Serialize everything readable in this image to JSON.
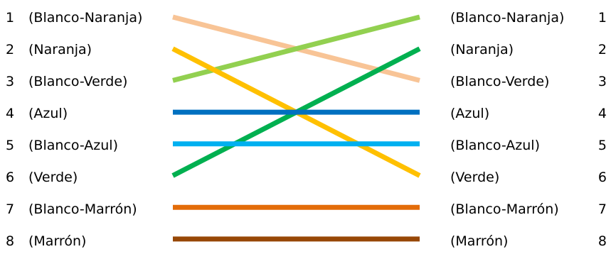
{
  "left_pins": [
    {
      "number": "1",
      "label": "(Blanco-Naranja)"
    },
    {
      "number": "2",
      "label": "(Naranja)"
    },
    {
      "number": "3",
      "label": "(Blanco-Verde)"
    },
    {
      "number": "4",
      "label": "(Azul)"
    },
    {
      "number": "5",
      "label": "(Blanco-Azul)"
    },
    {
      "number": "6",
      "label": "(Verde)"
    },
    {
      "number": "7",
      "label": "(Blanco-Marrón)"
    },
    {
      "number": "8",
      "label": "(Marrón)"
    }
  ],
  "right_pins": [
    {
      "number": "1",
      "label": "(Blanco-Naranja)"
    },
    {
      "number": "2",
      "label": "(Naranja)"
    },
    {
      "number": "3",
      "label": "(Blanco-Verde)"
    },
    {
      "number": "4",
      "label": "(Azul)"
    },
    {
      "number": "5",
      "label": "(Blanco-Azul)"
    },
    {
      "number": "6",
      "label": "(Verde)"
    },
    {
      "number": "7",
      "label": "(Blanco-Marrón)"
    },
    {
      "number": "8",
      "label": "(Marrón)"
    }
  ],
  "wires": [
    {
      "from_pin": 1,
      "to_pin": 3,
      "color": "#F8C496",
      "name": "wire-blanco-naranja"
    },
    {
      "from_pin": 2,
      "to_pin": 6,
      "color": "#FFC000",
      "name": "wire-naranja"
    },
    {
      "from_pin": 3,
      "to_pin": 1,
      "color": "#92D050",
      "name": "wire-blanco-verde"
    },
    {
      "from_pin": 4,
      "to_pin": 4,
      "color": "#0070C0",
      "name": "wire-azul"
    },
    {
      "from_pin": 5,
      "to_pin": 5,
      "color": "#00B0F0",
      "name": "wire-blanco-azul"
    },
    {
      "from_pin": 6,
      "to_pin": 2,
      "color": "#00B050",
      "name": "wire-verde"
    },
    {
      "from_pin": 7,
      "to_pin": 7,
      "color": "#E36C09",
      "name": "wire-blanco-marron"
    },
    {
      "from_pin": 8,
      "to_pin": 8,
      "color": "#974706",
      "name": "wire-marron"
    }
  ]
}
